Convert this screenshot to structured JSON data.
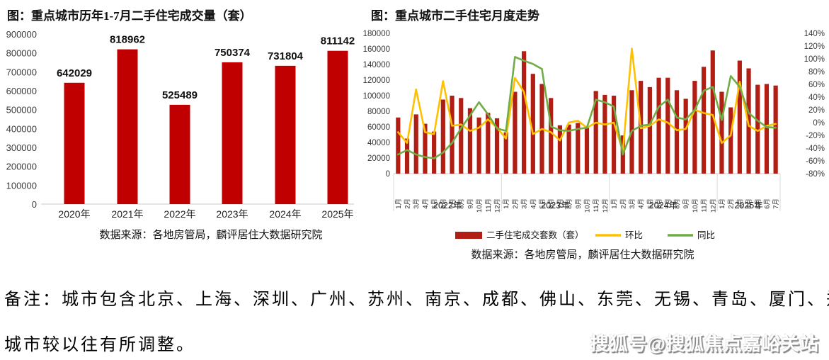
{
  "colors": {
    "left_bar": "#C00000",
    "right_bar": "#B01E14",
    "mom_line": "#FFC000",
    "yoy_line": "#70AD47",
    "axis_text": "#3a3a3a",
    "grid": "#c9c9c9"
  },
  "note": {
    "line1": "备注：城市包含北京、上海、深圳、广州、苏州、南京、成都、佛山、东莞、无锡、青岛、厦门、郑州，",
    "line2": "城市较以往有所调整。"
  },
  "watermark": "搜狐号@搜狐焦点嘉峪关站",
  "chart_data": [
    {
      "type": "bar",
      "title": "图：重点城市历年1-7月二手住宅成交量（套）",
      "categories": [
        "2020年",
        "2021年",
        "2022年",
        "2023年",
        "2024年",
        "2025年"
      ],
      "values": [
        642029,
        818962,
        525489,
        750374,
        731804,
        811142
      ],
      "data_labels": [
        "642029",
        "818962",
        "525489",
        "750374",
        "731804",
        "811142"
      ],
      "ylim": [
        0,
        900000
      ],
      "ytick_step": 100000,
      "grid": false,
      "source": "数据来源：各地房管局，麟评居住大数据研究院"
    },
    {
      "type": "combo bar+line",
      "title": "图：重点城市二手住宅月度走势",
      "month_labels": [
        "1月",
        "2月",
        "3月",
        "4月",
        "5月",
        "6月",
        "7月",
        "8月",
        "9月",
        "10月",
        "11月",
        "12月"
      ],
      "year_groups": [
        {
          "year": "2022年",
          "months": 12
        },
        {
          "year": "2023年",
          "months": 12
        },
        {
          "year": "2024年",
          "months": 12
        },
        {
          "year": "2025年",
          "months": 7
        }
      ],
      "left_axis": {
        "min": 0,
        "max": 180000,
        "step": 20000
      },
      "right_axis": {
        "min": -80,
        "max": 140,
        "step": 20,
        "format": "percent"
      },
      "grid": false,
      "legend_position": "bottom",
      "series": [
        {
          "name": "二手住宅成交套数（套）",
          "type": "bar",
          "axis": "left",
          "values": [
            72000,
            45000,
            76000,
            64000,
            54000,
            95000,
            100000,
            97000,
            84000,
            72000,
            78000,
            71000,
            53000,
            105000,
            157000,
            128000,
            115000,
            97000,
            62000,
            63000,
            65000,
            60000,
            106000,
            101000,
            100000,
            49000,
            107000,
            119000,
            111000,
            123000,
            123000,
            107000,
            96000,
            119000,
            137000,
            158000,
            105000,
            85000,
            145000,
            135000,
            114000,
            115000,
            113000
          ]
        },
        {
          "name": "环比",
          "type": "line",
          "axis": "right",
          "values": [
            -15,
            -32,
            52,
            -15,
            -18,
            65,
            -5,
            -3,
            -13,
            -8,
            5,
            -8,
            -25,
            70,
            48,
            -18,
            -10,
            -15,
            -28,
            0,
            3,
            -8,
            0,
            -3,
            0,
            -45,
            116,
            -9,
            -5,
            5,
            0,
            -12,
            -10,
            20,
            15,
            12,
            -32,
            -20,
            64,
            -5,
            -13,
            -5,
            -2
          ]
        },
        {
          "name": "同比",
          "type": "line",
          "axis": "right",
          "values": [
            -50,
            -43,
            -50,
            -54,
            -56,
            -47,
            -32,
            -9,
            11,
            32,
            13,
            -9,
            -13,
            103,
            97,
            92,
            84,
            -6,
            -12,
            -13,
            -10,
            -8,
            36,
            32,
            25,
            -50,
            -13,
            -5,
            -3,
            25,
            36,
            8,
            5,
            20,
            50,
            56,
            4,
            73,
            56,
            15,
            3,
            -7,
            -8
          ]
        }
      ],
      "source": "数据来源：各地房管局，麟评居住大数据研究院"
    }
  ]
}
